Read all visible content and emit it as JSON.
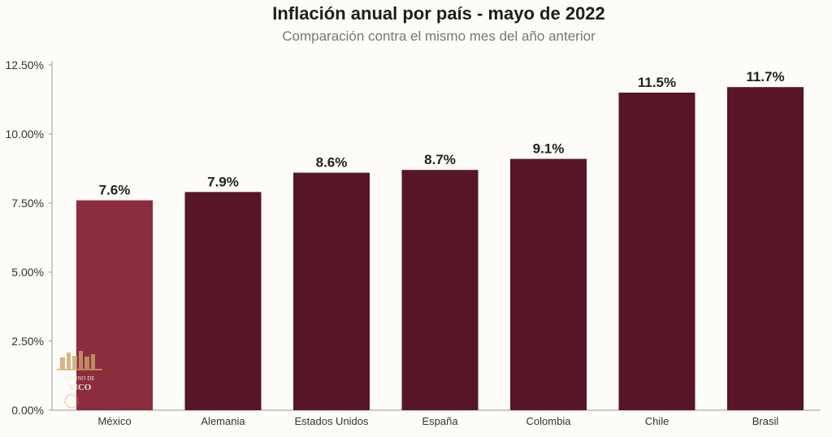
{
  "chart_data": {
    "type": "bar",
    "title": "Inflación anual por país - mayo de 2022",
    "subtitle": "Comparación contra el mismo mes del año anterior",
    "categories": [
      "México",
      "Alemania",
      "Estados Unidos",
      "España",
      "Colombia",
      "Chile",
      "Brasil"
    ],
    "values": [
      7.6,
      7.9,
      8.6,
      8.7,
      9.1,
      11.5,
      11.7
    ],
    "value_labels": [
      "7.6%",
      "7.9%",
      "8.6%",
      "8.7%",
      "9.1%",
      "11.5%",
      "11.7%"
    ],
    "y_ticks": [
      0,
      2.5,
      5,
      7.5,
      10,
      12.5
    ],
    "y_tick_labels": [
      "0.00%",
      "2.50%",
      "5.00%",
      "7.50%",
      "10.00%",
      "12.50%"
    ],
    "ylim": [
      0,
      12.5
    ],
    "xlabel": "",
    "ylabel": "",
    "grid": false,
    "colors": {
      "highlight": "#8b2d3e",
      "default": "#561627"
    },
    "highlight_index": 0
  },
  "logo": {
    "text_line1": "BIERNO DE",
    "text_line2": "XICO"
  }
}
